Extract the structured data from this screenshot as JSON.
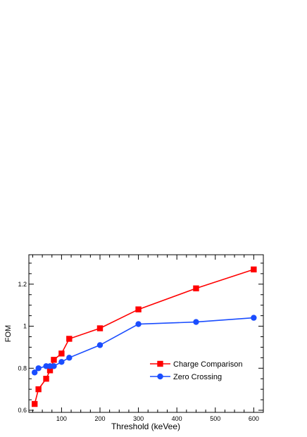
{
  "chart_data": {
    "type": "line",
    "title": "",
    "xlabel": "Threshold (keVee)",
    "ylabel": "FOM",
    "xlim": [
      15,
      625
    ],
    "ylim": [
      0.59,
      1.34
    ],
    "xticks": [
      100,
      200,
      300,
      400,
      500,
      600
    ],
    "xtick_labels": [
      "100",
      "200",
      "300",
      "400",
      "500",
      "600"
    ],
    "yticks": [
      0.6,
      0.8,
      1.0,
      1.2
    ],
    "ytick_labels": [
      "0.6",
      "0.8",
      "1",
      "1.2"
    ],
    "grid": false,
    "legend_position": "lower-right",
    "series": [
      {
        "name": "Charge Comparison",
        "color": "#ff0000",
        "marker": "square",
        "x": [
          30,
          40,
          60,
          70,
          80,
          100,
          120,
          200,
          300,
          450,
          600
        ],
        "y": [
          0.63,
          0.7,
          0.75,
          0.79,
          0.84,
          0.87,
          0.94,
          0.99,
          1.08,
          1.18,
          1.27
        ]
      },
      {
        "name": "Zero Crossing",
        "color": "#1a4dff",
        "marker": "circle",
        "x": [
          30,
          40,
          60,
          70,
          80,
          100,
          120,
          200,
          300,
          450,
          600
        ],
        "y": [
          0.78,
          0.8,
          0.81,
          0.81,
          0.81,
          0.83,
          0.85,
          0.91,
          1.01,
          1.02,
          1.04
        ]
      }
    ]
  }
}
